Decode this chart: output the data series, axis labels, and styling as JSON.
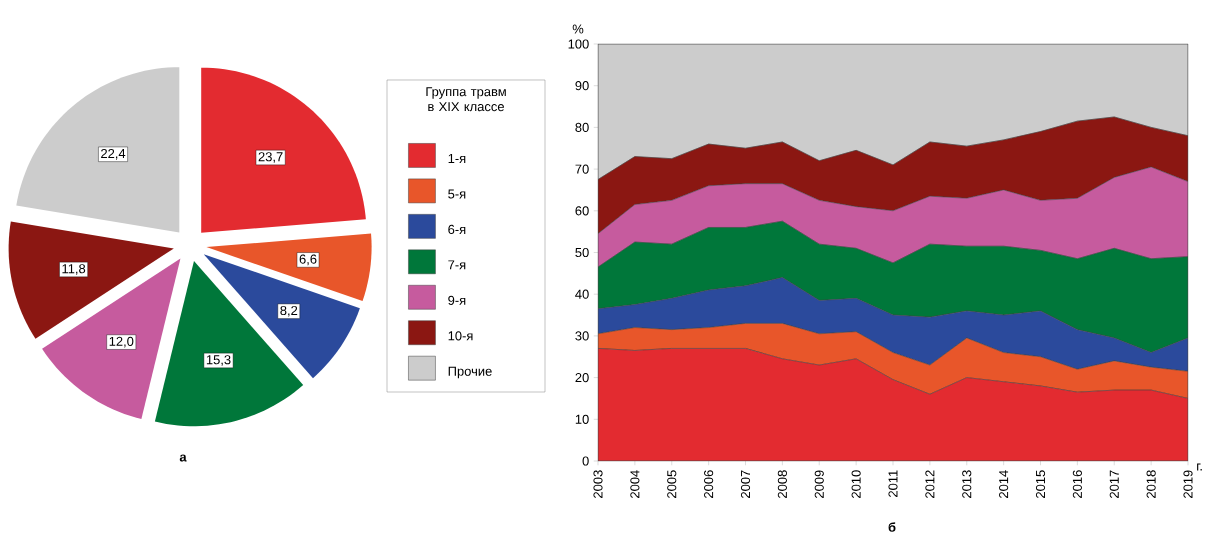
{
  "chart_data": [
    {
      "type": "pie",
      "categories": [
        null,
        null,
        null,
        null,
        null,
        null,
        null
      ],
      "values": [
        23.7,
        6.6,
        8.2,
        15.3,
        12.0,
        11.8,
        22.4
      ],
      "value_labels": [
        "23,7",
        "6,6",
        "8,2",
        "15,3",
        "12,0",
        "11,8",
        "22,4"
      ],
      "colors": [
        "#e32b30",
        "#e8562a",
        "#2b4a9c",
        "#00773a",
        "#c65b9e",
        "#8b1712",
        "#cccccc"
      ],
      "annotations": [
        "а"
      ]
    },
    {
      "type": "area",
      "stacked": true,
      "ylabel": "%",
      "xlabel": "г.",
      "legend_title": "Группа травм в XIX классе",
      "legend": "left",
      "marker": "none",
      "x": [
        2003,
        2004,
        2005,
        2006,
        2007,
        2008,
        2009,
        2010,
        2011,
        2012,
        2013,
        2014,
        2015,
        2016,
        2017,
        2018,
        2019
      ],
      "xlim": [
        2003,
        2019
      ],
      "xticks": [
        2003,
        2004,
        2005,
        2006,
        2007,
        2008,
        2009,
        2010,
        2011,
        2012,
        2013,
        2014,
        2015,
        2016,
        2017,
        2018,
        2019
      ],
      "ylim": [
        0,
        100
      ],
      "yticks": [
        0,
        10,
        20,
        30,
        40,
        50,
        60,
        70,
        80,
        90,
        100
      ],
      "series": [
        {
          "name": "1-я",
          "color": "#e32b30",
          "values": [
            27,
            26.5,
            27,
            27,
            27,
            24.5,
            23,
            24.5,
            19.5,
            16,
            20,
            19,
            18,
            16.5,
            17,
            17,
            15
          ]
        },
        {
          "name": "5-я",
          "color": "#e8562a",
          "values": [
            3.5,
            5.5,
            4.5,
            5,
            6,
            8.5,
            7.5,
            6.5,
            6.5,
            7,
            9.5,
            7,
            7,
            5.5,
            7,
            5.5,
            6.5
          ]
        },
        {
          "name": "6-я",
          "color": "#2b4a9c",
          "values": [
            6,
            5.5,
            7.5,
            9,
            9,
            11,
            8,
            8,
            9,
            11.5,
            6.5,
            9,
            11,
            9.5,
            5.5,
            3.5,
            8
          ]
        },
        {
          "name": "7-я",
          "color": "#00773a",
          "values": [
            10,
            15,
            13,
            15,
            14,
            13.5,
            13.5,
            12,
            12.5,
            17.5,
            15.5,
            16.5,
            14.5,
            17,
            21.5,
            22.5,
            19.5
          ]
        },
        {
          "name": "9-я",
          "color": "#c65b9e",
          "values": [
            8,
            9,
            10.5,
            10,
            10.5,
            9,
            10.5,
            10,
            12.5,
            11.5,
            11.5,
            13.5,
            12,
            14.5,
            17,
            22,
            18
          ]
        },
        {
          "name": "10-я",
          "color": "#8b1712",
          "values": [
            13,
            11.5,
            10,
            10,
            8.5,
            10,
            9.5,
            13.5,
            11,
            13,
            12.5,
            12,
            16.5,
            18.5,
            14.5,
            9.5,
            11
          ]
        },
        {
          "name": "Прочие",
          "color": "#cccccc",
          "values": [
            32.5,
            27,
            27.5,
            24,
            25,
            23.5,
            28,
            25.5,
            29,
            23.5,
            24.5,
            23,
            21,
            18.5,
            17.5,
            20,
            22
          ]
        }
      ],
      "annotations": [
        "б"
      ]
    }
  ]
}
